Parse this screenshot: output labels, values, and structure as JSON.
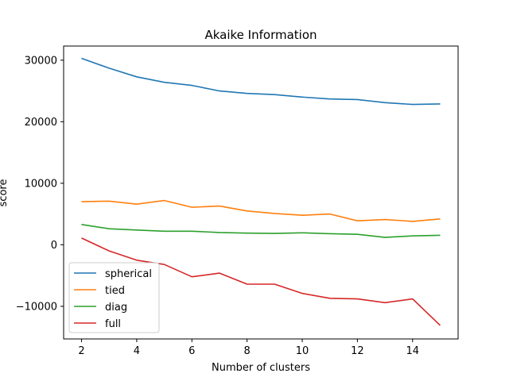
{
  "chart_data": {
    "type": "line",
    "title": "Akaike Information",
    "xlabel": "Number of clusters",
    "ylabel": "score",
    "x": [
      2,
      3,
      4,
      5,
      6,
      7,
      8,
      9,
      10,
      11,
      12,
      13,
      14,
      15
    ],
    "xlim": [
      1.35,
      15.65
    ],
    "ylim": [
      -15300,
      32300
    ],
    "xticks": [
      2,
      4,
      6,
      8,
      10,
      12,
      14
    ],
    "yticks": [
      -10000,
      0,
      10000,
      20000,
      30000
    ],
    "grid": false,
    "legend_position": "lower-left",
    "series": [
      {
        "name": "spherical",
        "color": "#1f77b4",
        "values": [
          30300,
          28700,
          27300,
          26400,
          25900,
          25000,
          24600,
          24400,
          24000,
          23700,
          23600,
          23100,
          22800,
          22900
        ]
      },
      {
        "name": "tied",
        "color": "#ff7f0e",
        "values": [
          7000,
          7100,
          6600,
          7200,
          6100,
          6300,
          5500,
          5100,
          4800,
          5000,
          3900,
          4100,
          3800,
          4200
        ]
      },
      {
        "name": "diag",
        "color": "#2ca02c",
        "values": [
          3300,
          2600,
          2400,
          2200,
          2200,
          2000,
          1900,
          1850,
          1950,
          1800,
          1700,
          1200,
          1450,
          1550
        ]
      },
      {
        "name": "full",
        "color": "#d62728",
        "values": [
          1100,
          -1000,
          -2500,
          -3200,
          -5200,
          -4600,
          -6400,
          -6400,
          -7900,
          -8700,
          -8800,
          -9400,
          -8800,
          -13100
        ]
      }
    ]
  }
}
